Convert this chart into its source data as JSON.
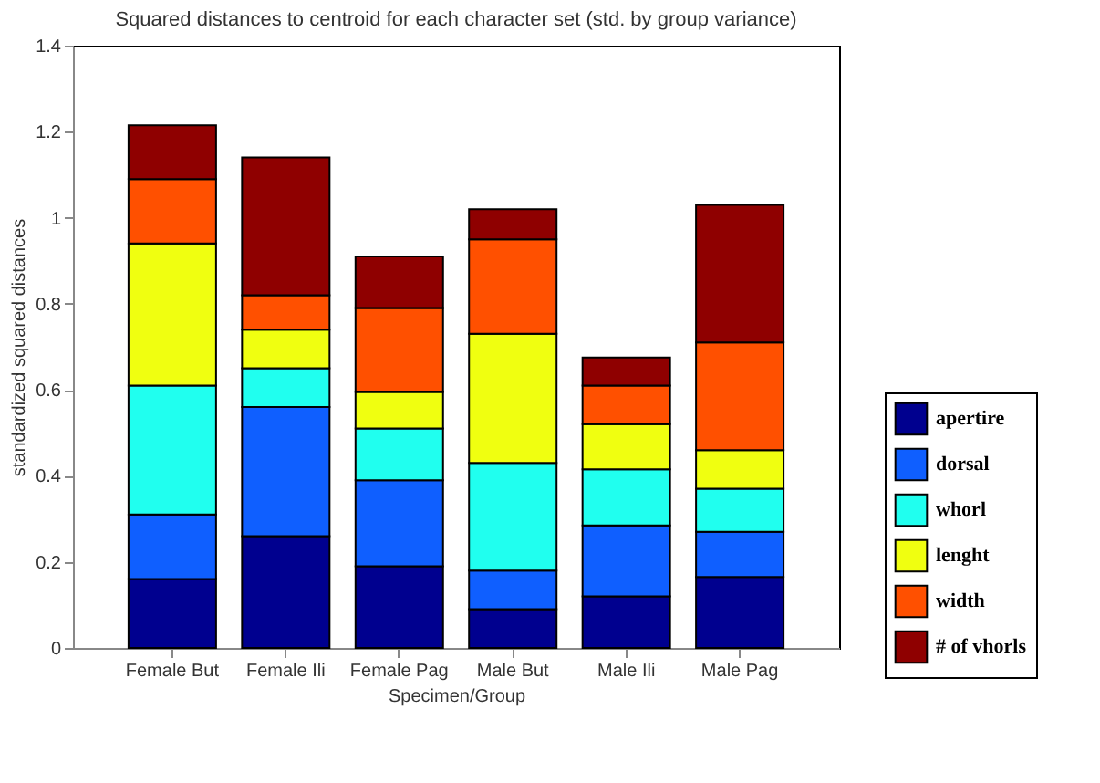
{
  "chart_data": {
    "type": "bar",
    "stacked": true,
    "title": "Squared distances to centroid for each character set (std. by group variance)",
    "xlabel": "Specimen/Group",
    "ylabel": "standardized squared distances",
    "categories": [
      "Female But",
      "Female Ili",
      "Female Pag",
      "Male But",
      "Male Ili",
      "Male Pag"
    ],
    "series": [
      {
        "name": "apertire",
        "color": "#00008f",
        "values": [
          0.16,
          0.26,
          0.19,
          0.09,
          0.12,
          0.165
        ]
      },
      {
        "name": "dorsal",
        "color": "#0f5fff",
        "values": [
          0.15,
          0.3,
          0.2,
          0.09,
          0.165,
          0.105
        ]
      },
      {
        "name": "whorl",
        "color": "#20ffef",
        "values": [
          0.3,
          0.09,
          0.12,
          0.25,
          0.13,
          0.1
        ]
      },
      {
        "name": "lenght",
        "color": "#f0ff10",
        "values": [
          0.33,
          0.09,
          0.085,
          0.3,
          0.105,
          0.09
        ]
      },
      {
        "name": "width",
        "color": "#ff5000",
        "values": [
          0.15,
          0.08,
          0.195,
          0.22,
          0.09,
          0.25
        ]
      },
      {
        "name": "# of vhorls",
        "color": "#8f0000",
        "values": [
          0.125,
          0.32,
          0.12,
          0.07,
          0.065,
          0.32
        ]
      }
    ],
    "ylim": [
      0,
      1.4
    ],
    "yticks": [
      0,
      0.2,
      0.4,
      0.6,
      0.8,
      1,
      1.2,
      1.4
    ],
    "grid": false,
    "legend": "bottom right"
  }
}
